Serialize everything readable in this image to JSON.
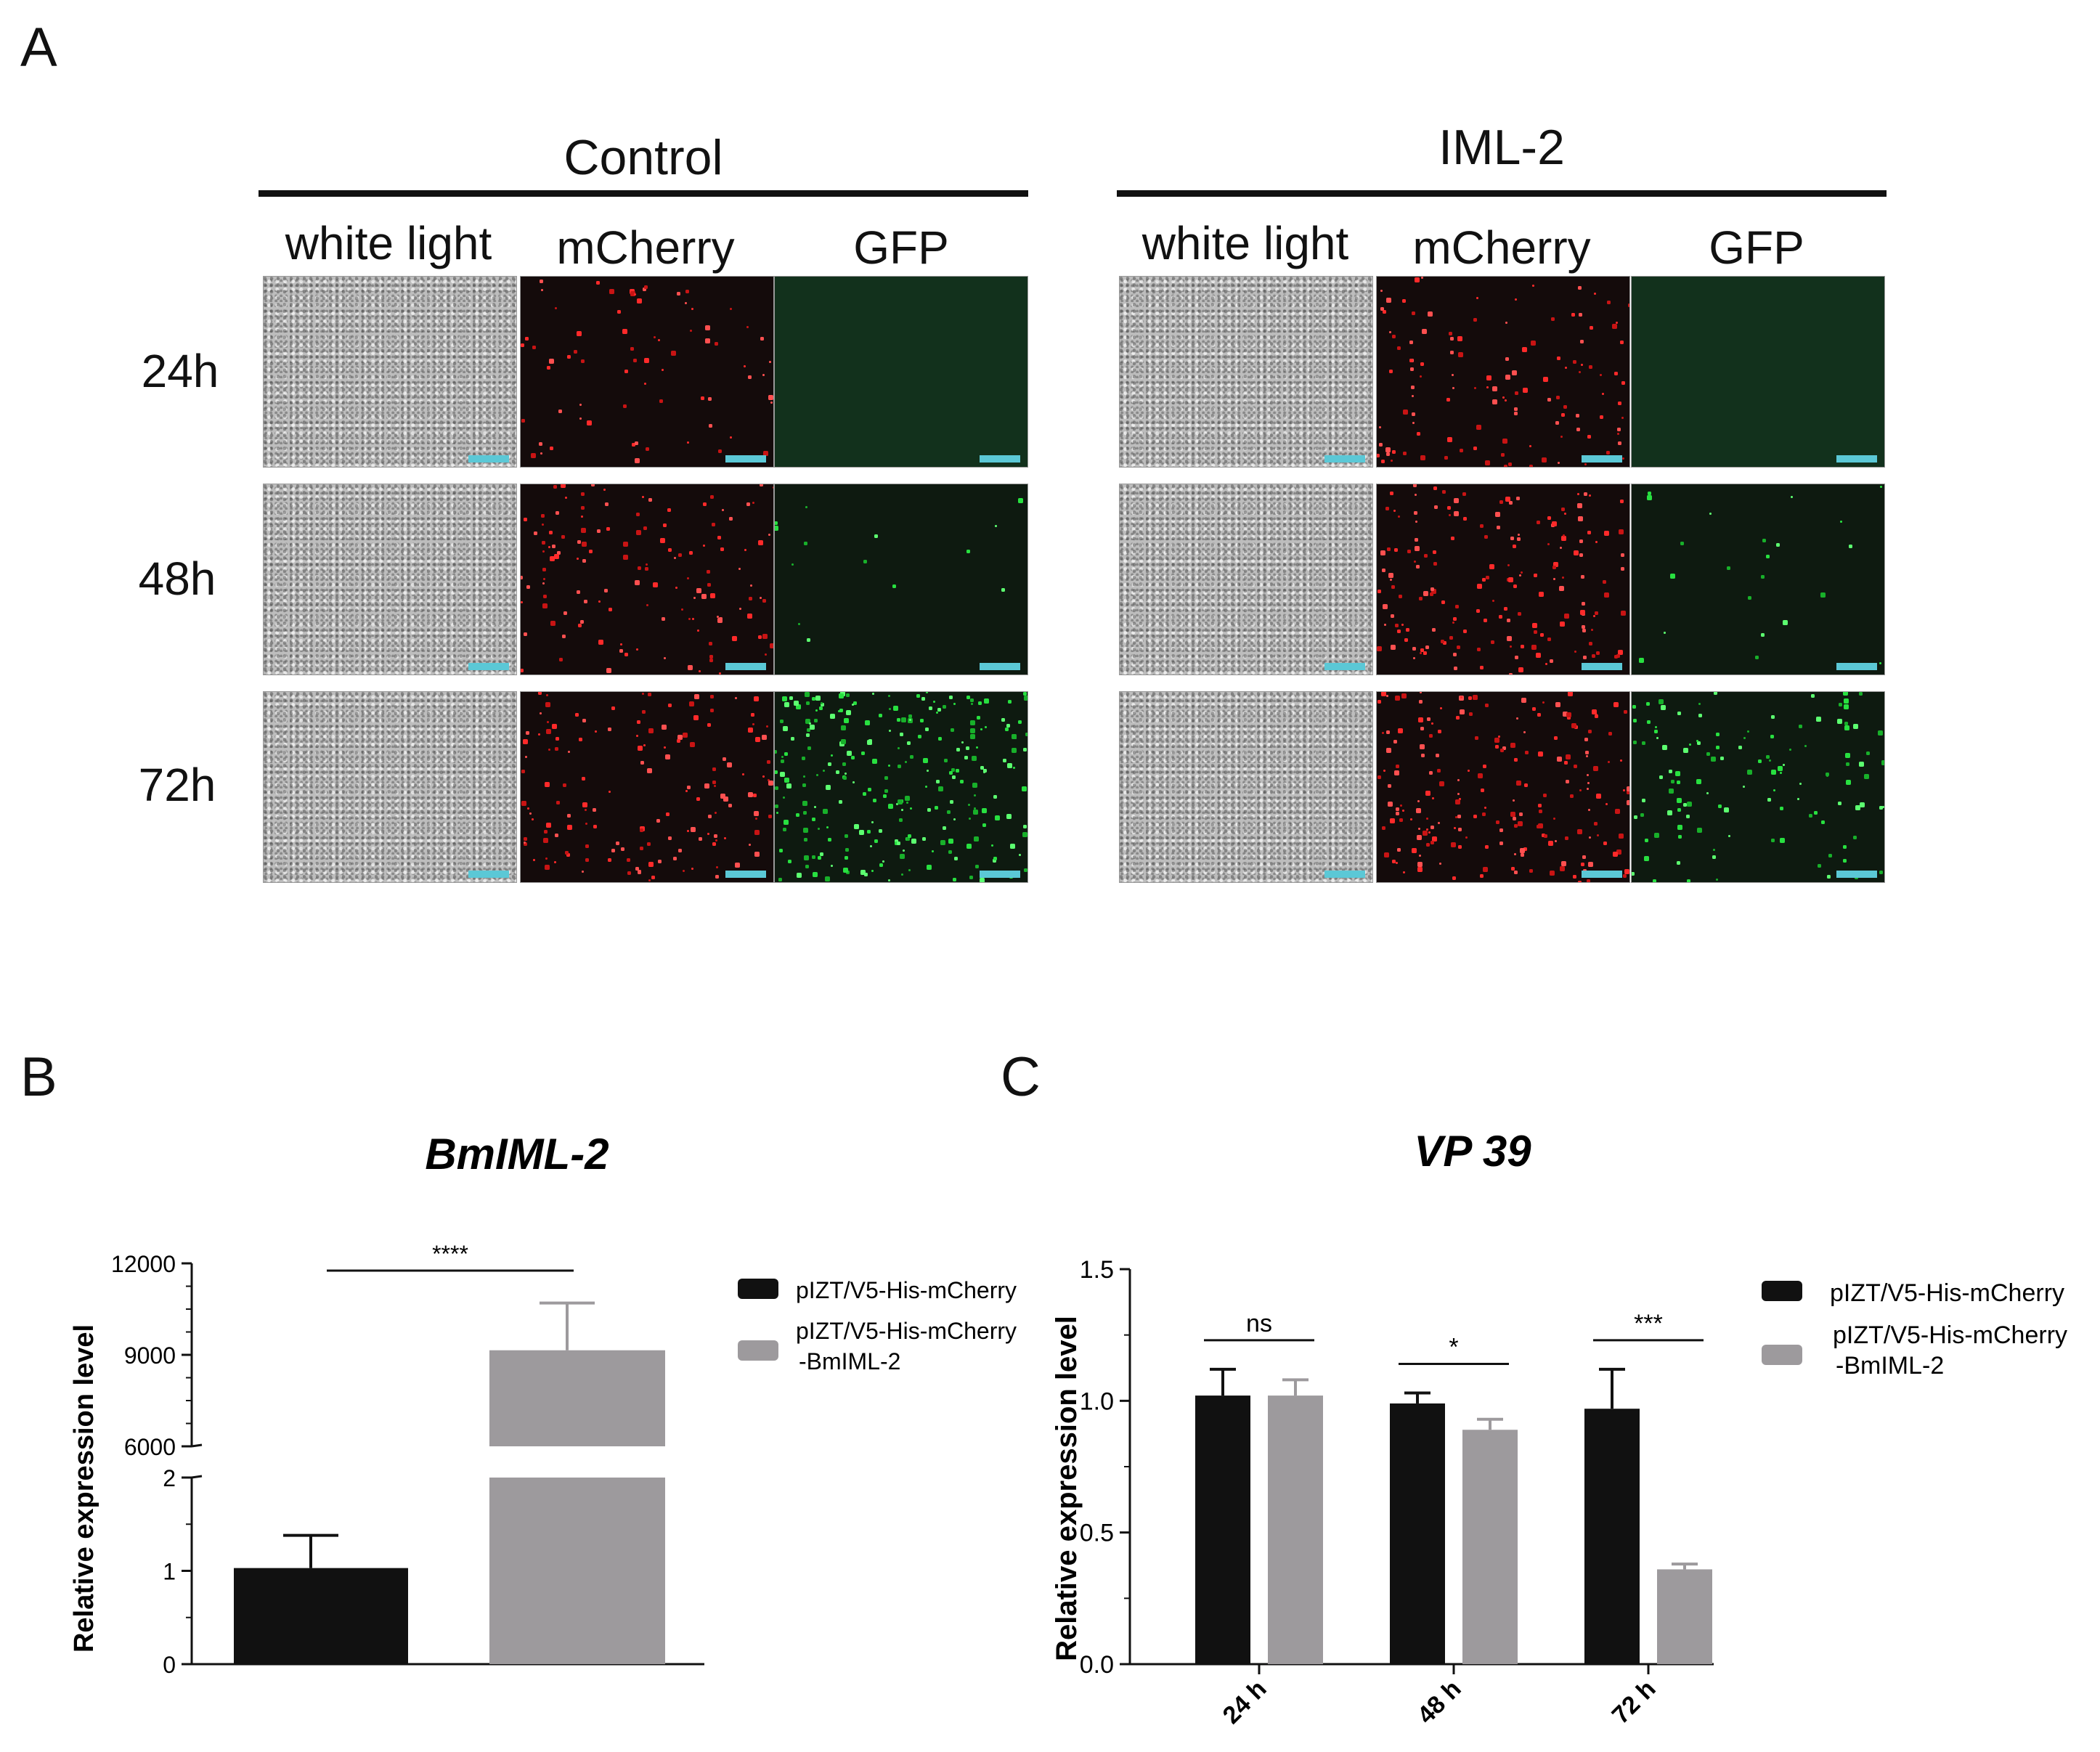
{
  "panel_a": {
    "letter": "A",
    "groups": [
      {
        "title": "Control",
        "columns": [
          "white light",
          "mCherry",
          "GFP"
        ]
      },
      {
        "title": "IML-2",
        "columns": [
          "white light",
          "mCherry",
          "GFP"
        ]
      }
    ],
    "rows": [
      "24h",
      "48h",
      "72h"
    ]
  },
  "panel_b": {
    "letter": "B"
  },
  "panel_c": {
    "letter": "C"
  },
  "chart_data": [
    {
      "type": "bar",
      "title": "BmIML-2",
      "ylabel": "Relative expression level",
      "axis_break": {
        "lower_range": [
          0,
          2
        ],
        "upper_range": [
          6000,
          12000
        ]
      },
      "lower_ticks": [
        "0",
        "1",
        "2"
      ],
      "upper_ticks": [
        "6000",
        "9000",
        "12000"
      ],
      "categories": [
        "pIZT/V5-His-mCherry",
        "pIZT/V5-His-mCherry -BmIML-2"
      ],
      "series": [
        {
          "name": "pIZT/V5-His-mCherry",
          "value": 1.03,
          "error": 0.35,
          "color": "#111111"
        },
        {
          "name": "pIZT/V5-His-mCherry -BmIML-2",
          "value": 9150,
          "error": 1550,
          "color": "#9d9a9d"
        }
      ],
      "significance": [
        {
          "label": "****"
        }
      ],
      "legend": [
        "pIZT/V5-His-mCherry",
        "pIZT/V5-His-mCherry",
        "-BmIML-2"
      ]
    },
    {
      "type": "bar",
      "title": "VP 39",
      "ylabel": "Relative expression level",
      "ylim": [
        0,
        1.5
      ],
      "yticks": [
        "0.0",
        "0.5",
        "1.0",
        "1.5"
      ],
      "categories": [
        "24 h",
        "48 h",
        "72 h"
      ],
      "series": [
        {
          "name": "pIZT/V5-His-mCherry",
          "values": [
            1.02,
            0.99,
            0.97
          ],
          "errors": [
            0.1,
            0.04,
            0.15
          ],
          "color": "#111111"
        },
        {
          "name": "pIZT/V5-His-mCherry -BmIML-2",
          "values": [
            1.02,
            0.89,
            0.36
          ],
          "errors": [
            0.06,
            0.04,
            0.02
          ],
          "color": "#9d9a9d"
        }
      ],
      "significance": [
        "ns",
        "*",
        "***"
      ],
      "legend": [
        "pIZT/V5-His-mCherry",
        "pIZT/V5-His-mCherry",
        "-BmIML-2"
      ]
    }
  ]
}
